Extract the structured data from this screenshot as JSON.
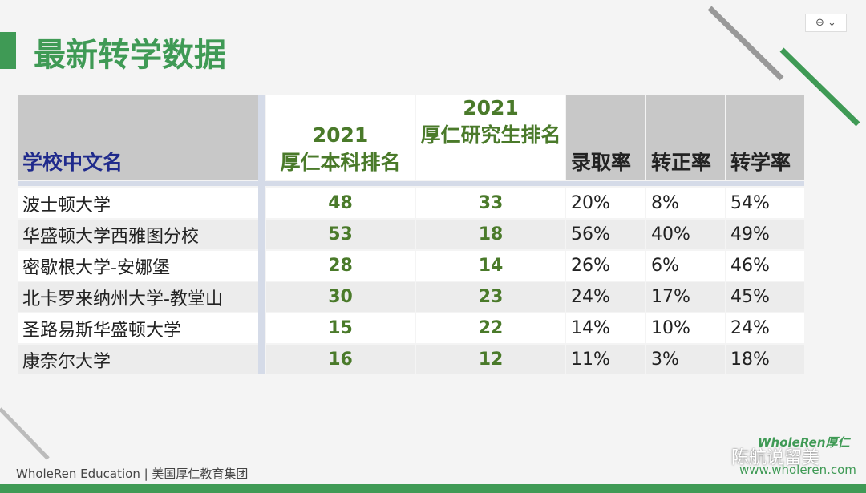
{
  "header": {
    "title": "最新转学数据"
  },
  "table": {
    "headers": [
      [
        "学校中文名"
      ],
      [
        "2021",
        "厚仁本科排名"
      ],
      [
        "2021",
        "厚仁研究生排名"
      ],
      [
        "录取率"
      ],
      [
        "转正率"
      ],
      [
        "转学率"
      ]
    ],
    "rows": [
      [
        "波士顿大学",
        48,
        33,
        "20%",
        "8%",
        "54%"
      ],
      [
        "华盛顿大学西雅图分校",
        53,
        18,
        "56%",
        "40%",
        "49%"
      ],
      [
        "密歇根大学-安娜堡",
        28,
        14,
        "26%",
        "6%",
        "46%"
      ],
      [
        "北卡罗来纳州大学-教堂山",
        30,
        23,
        "24%",
        "17%",
        "45%"
      ],
      [
        "圣路易斯华盛顿大学",
        15,
        22,
        "14%",
        "10%",
        "24%"
      ],
      [
        "康奈尔大学",
        16,
        12,
        "11%",
        "3%",
        "18%"
      ]
    ]
  },
  "footer": {
    "text": "WholeRen Education | 美国厚仁教育集团",
    "logo": "WholeRen厚仁",
    "watermark": "陈航说留美",
    "url": "www.wholeren.com"
  }
}
